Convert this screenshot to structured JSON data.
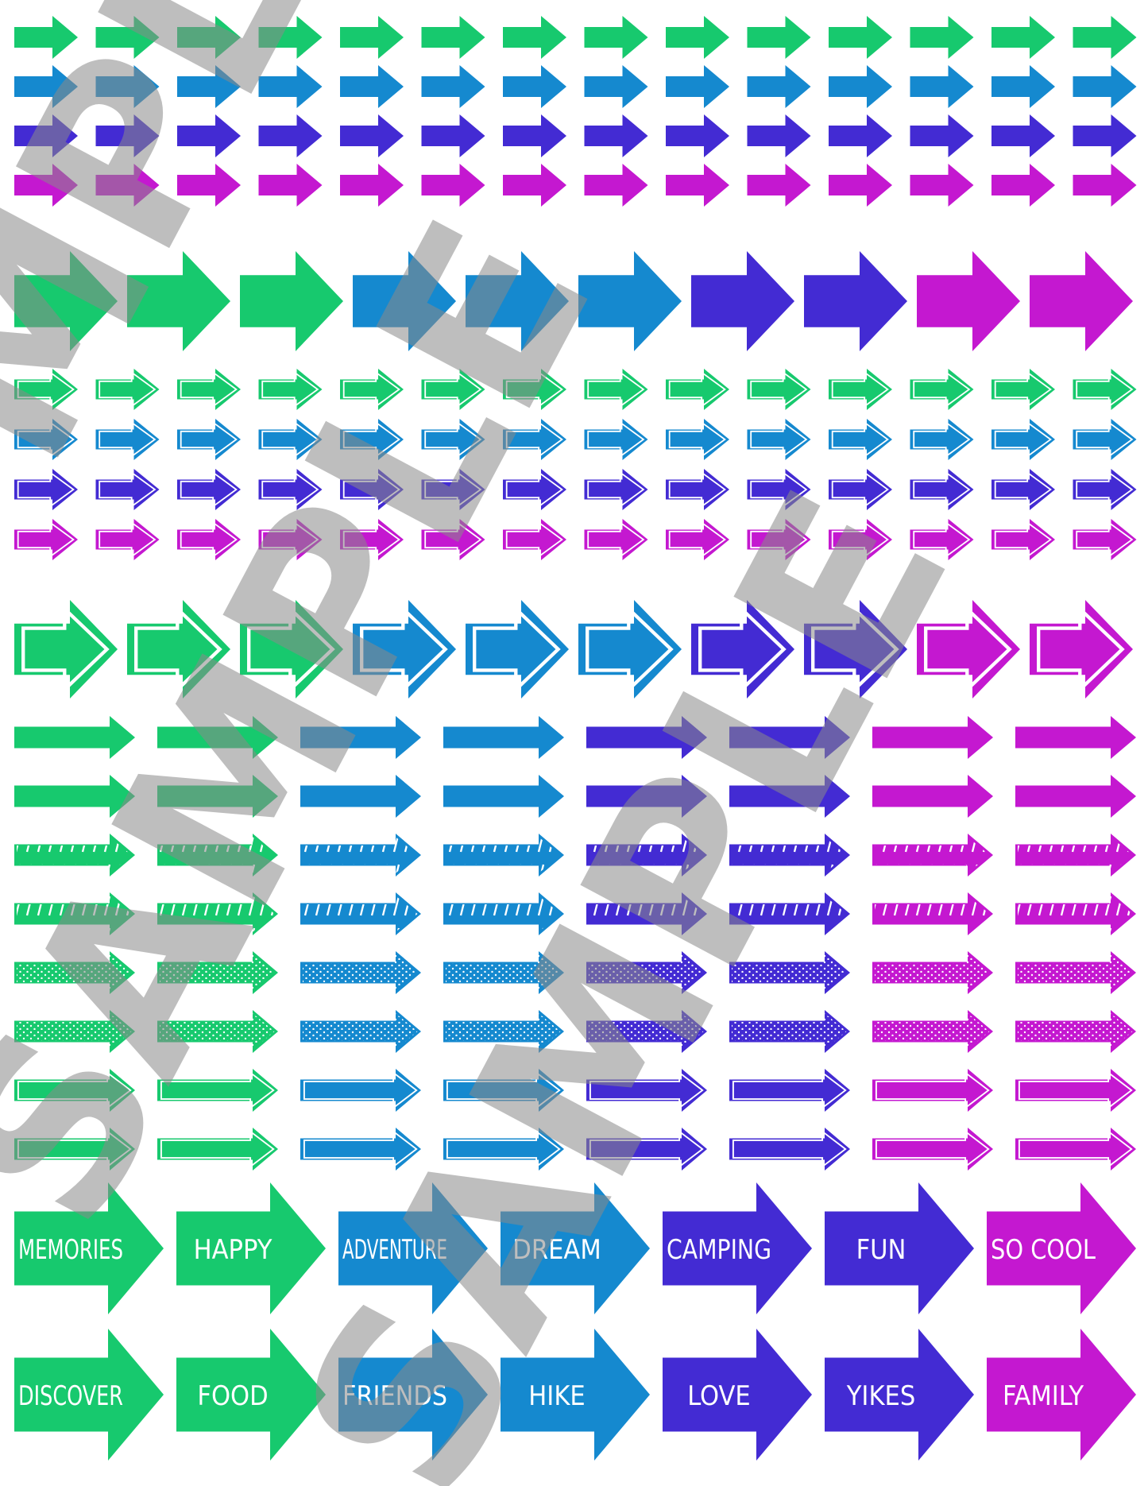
{
  "colors": {
    "green": "#17c96e",
    "blue": "#1589cf",
    "indigo": "#432bd3",
    "magenta": "#c418d0",
    "background": "#ffffff",
    "watermark": "#8a8a8a"
  },
  "sections": [
    {
      "name": "small-solid-arrows",
      "style": "solid",
      "rows": 4,
      "cols": 14,
      "row_colors": [
        "green",
        "blue",
        "indigo",
        "magenta"
      ]
    },
    {
      "name": "large-solid-arrows",
      "style": "solid",
      "colors": [
        "green",
        "green",
        "green",
        "blue",
        "blue",
        "blue",
        "indigo",
        "indigo",
        "magenta",
        "magenta"
      ]
    },
    {
      "name": "small-outlined-arrows",
      "style": "outlined",
      "rows": 4,
      "cols": 14,
      "row_colors": [
        "green",
        "blue",
        "indigo",
        "magenta"
      ]
    },
    {
      "name": "large-outlined-arrows",
      "style": "outlined",
      "colors": [
        "green",
        "green",
        "green",
        "blue",
        "blue",
        "blue",
        "indigo",
        "indigo",
        "magenta",
        "magenta"
      ]
    },
    {
      "name": "long-arrows",
      "cols": 8,
      "col_colors": [
        "green",
        "green",
        "blue",
        "blue",
        "indigo",
        "indigo",
        "magenta",
        "magenta"
      ],
      "row_styles": [
        "solid",
        "solid",
        "striped",
        "striped",
        "dotted",
        "dotted",
        "outlined",
        "outlined"
      ]
    }
  ],
  "word_arrows": {
    "row1": [
      {
        "text": "MEMORIES",
        "color": "green"
      },
      {
        "text": "HAPPY",
        "color": "green"
      },
      {
        "text": "ADVENTURE",
        "color": "blue"
      },
      {
        "text": "DREAM",
        "color": "blue"
      },
      {
        "text": "CAMPING",
        "color": "indigo"
      },
      {
        "text": "FUN",
        "color": "indigo"
      },
      {
        "text": "SO COOL",
        "color": "magenta"
      }
    ],
    "row2": [
      {
        "text": "DISCOVER",
        "color": "green"
      },
      {
        "text": "FOOD",
        "color": "green"
      },
      {
        "text": "FRIENDS",
        "color": "blue"
      },
      {
        "text": "HIKE",
        "color": "blue"
      },
      {
        "text": "LOVE",
        "color": "indigo"
      },
      {
        "text": "YIKES",
        "color": "indigo"
      },
      {
        "text": "FAMILY",
        "color": "magenta"
      }
    ]
  },
  "watermark": {
    "text": "SAMPLE",
    "partial_text": "MPLE"
  }
}
